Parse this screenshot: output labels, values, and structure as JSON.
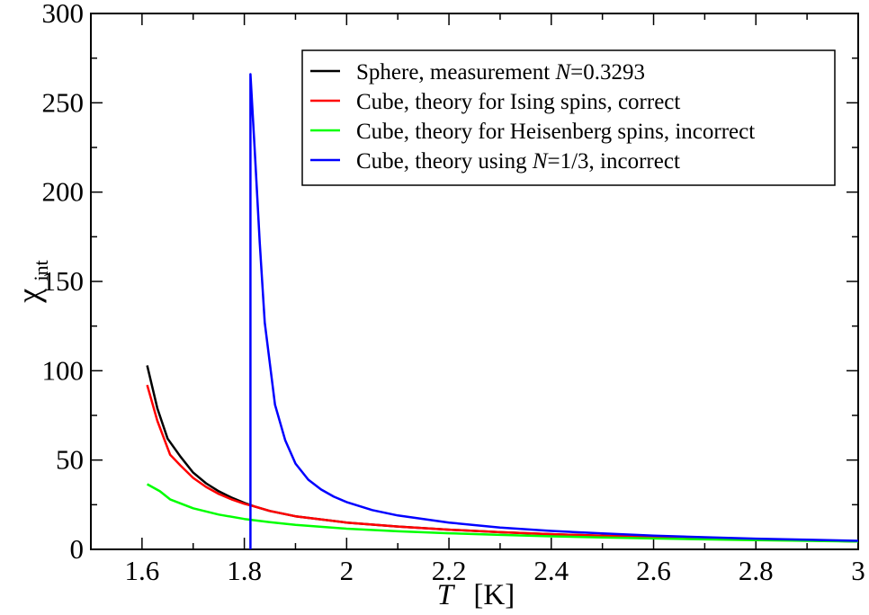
{
  "chart_data": {
    "type": "line",
    "xlabel": {
      "var": "T",
      "unit": "[K]"
    },
    "ylabel": {
      "base": "χ",
      "sub": "int"
    },
    "xlim": [
      1.5,
      3.0
    ],
    "ylim": [
      0,
      300
    ],
    "x_ticks": [
      1.6,
      1.8,
      2.0,
      2.2,
      2.4,
      2.6,
      2.8,
      3.0
    ],
    "x_tick_labels": [
      "1.6",
      "1.8",
      "2",
      "2.2",
      "2.4",
      "2.6",
      "2.8",
      "3"
    ],
    "y_ticks": [
      0,
      50,
      100,
      150,
      200,
      250,
      300
    ],
    "y_tick_labels": [
      "0",
      "50",
      "100",
      "150",
      "200",
      "250",
      "300"
    ],
    "legend_position": "top-right",
    "series": [
      {
        "name": "Sphere, measurement N=0.3293",
        "legend": {
          "pre": "Sphere, measurement ",
          "italic": "N",
          "post": "=0.3293"
        },
        "color": "#000000",
        "points": [
          [
            1.61,
            103
          ],
          [
            1.63,
            79
          ],
          [
            1.65,
            62
          ],
          [
            1.675,
            52
          ],
          [
            1.7,
            43
          ],
          [
            1.725,
            37
          ],
          [
            1.75,
            32.5
          ],
          [
            1.775,
            29
          ],
          [
            1.8,
            26
          ],
          [
            1.82,
            24
          ],
          [
            1.85,
            21.5
          ],
          [
            1.9,
            18.5
          ],
          [
            2.0,
            15
          ],
          [
            2.1,
            12.8
          ],
          [
            2.2,
            11
          ],
          [
            2.3,
            9.6
          ],
          [
            2.4,
            8.5
          ],
          [
            2.5,
            7.6
          ],
          [
            2.6,
            6.8
          ],
          [
            2.7,
            6.1
          ],
          [
            2.8,
            5.5
          ],
          [
            2.9,
            5.0
          ],
          [
            3.0,
            4.5
          ]
        ]
      },
      {
        "name": "Cube, theory for Ising spins, correct",
        "legend": {
          "pre": "Cube, theory for Ising spins, correct",
          "italic": "",
          "post": ""
        },
        "color": "#ff0000",
        "points": [
          [
            1.61,
            92
          ],
          [
            1.63,
            72
          ],
          [
            1.655,
            53
          ],
          [
            1.675,
            47
          ],
          [
            1.7,
            40
          ],
          [
            1.725,
            35
          ],
          [
            1.75,
            31
          ],
          [
            1.775,
            28
          ],
          [
            1.8,
            25.5
          ],
          [
            1.82,
            24
          ],
          [
            1.85,
            21.5
          ],
          [
            1.9,
            18.5
          ],
          [
            2.0,
            15
          ],
          [
            2.1,
            12.8
          ],
          [
            2.2,
            11
          ],
          [
            2.3,
            9.6
          ],
          [
            2.4,
            8.5
          ],
          [
            2.5,
            7.6
          ],
          [
            2.6,
            6.8
          ],
          [
            2.7,
            6.1
          ],
          [
            2.8,
            5.5
          ],
          [
            2.9,
            5.0
          ],
          [
            3.0,
            4.5
          ]
        ]
      },
      {
        "name": "Cube, theory for Heisenberg spins, incorrect",
        "legend": {
          "pre": "Cube, theory for Heisenberg spins, incorrect",
          "italic": "",
          "post": ""
        },
        "color": "#00ff00",
        "points": [
          [
            1.61,
            36.5
          ],
          [
            1.635,
            32.5
          ],
          [
            1.655,
            28
          ],
          [
            1.7,
            23
          ],
          [
            1.75,
            19.5
          ],
          [
            1.8,
            17
          ],
          [
            1.85,
            15.2
          ],
          [
            1.9,
            13.7
          ],
          [
            2.0,
            11.6
          ],
          [
            2.1,
            10.1
          ],
          [
            2.2,
            9.0
          ],
          [
            2.3,
            8.1
          ],
          [
            2.4,
            7.3
          ],
          [
            2.5,
            6.7
          ],
          [
            2.6,
            6.1
          ],
          [
            2.7,
            5.6
          ],
          [
            2.8,
            5.2
          ],
          [
            2.9,
            4.8
          ],
          [
            3.0,
            4.4
          ]
        ]
      },
      {
        "name": "Cube, theory using N=1/3, incorrect",
        "legend": {
          "pre": "Cube, theory using ",
          "italic": "N",
          "post": "=1/3, incorrect"
        },
        "color": "#0000ff",
        "points": [
          [
            1.812,
            0
          ],
          [
            1.812,
            266
          ],
          [
            1.82,
            225
          ],
          [
            1.83,
            172
          ],
          [
            1.84,
            127
          ],
          [
            1.86,
            81
          ],
          [
            1.88,
            61
          ],
          [
            1.9,
            48
          ],
          [
            1.925,
            39
          ],
          [
            1.95,
            33.5
          ],
          [
            1.975,
            29.5
          ],
          [
            2.0,
            26.5
          ],
          [
            2.05,
            22
          ],
          [
            2.1,
            19
          ],
          [
            2.2,
            15
          ],
          [
            2.3,
            12.2
          ],
          [
            2.4,
            10.3
          ],
          [
            2.5,
            8.9
          ],
          [
            2.6,
            7.7
          ],
          [
            2.7,
            6.8
          ],
          [
            2.8,
            6.0
          ],
          [
            2.9,
            5.4
          ],
          [
            3.0,
            4.8
          ]
        ]
      }
    ]
  }
}
